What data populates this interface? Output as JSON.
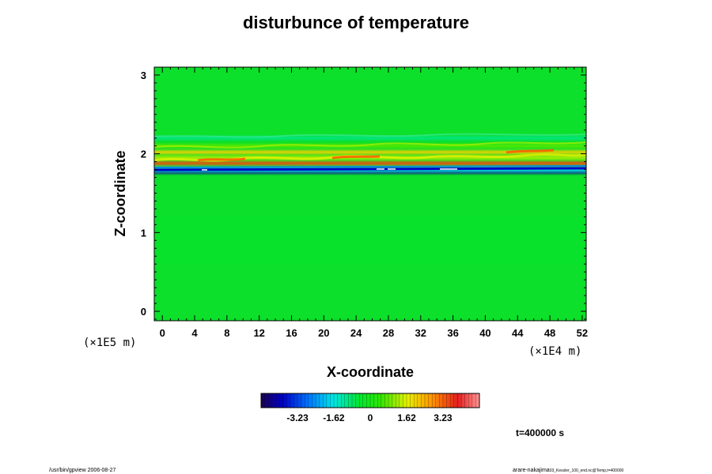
{
  "chart_data": {
    "type": "heatmap",
    "title": "disturbunce of temperature",
    "xlabel": "X-coordinate",
    "ylabel": "Z-coordinate",
    "x_unit": "(×1E4 m)",
    "y_unit": "(×1E5 m)",
    "xlim": [
      -1,
      52.5
    ],
    "ylim": [
      -0.12,
      3.1
    ],
    "xticks": [
      0,
      4,
      8,
      12,
      16,
      20,
      24,
      28,
      32,
      36,
      40,
      44,
      48,
      52
    ],
    "yticks": [
      0,
      1,
      2,
      3
    ],
    "colorbar": {
      "min": -4.85,
      "max": 4.85,
      "ticks": [
        -3.23,
        -1.62,
        0,
        1.62,
        3.23
      ],
      "tick_labels": [
        "-3.23",
        "-1.62",
        "0",
        "1.62",
        "3.23"
      ]
    },
    "bands": [
      {
        "z": 1.77,
        "value": -4.2
      },
      {
        "z": 1.8,
        "value": -1.6
      },
      {
        "z": 1.88,
        "value": 3.4
      },
      {
        "z": 1.95,
        "value": 1.3
      },
      {
        "z": 2.02,
        "value": 2.0
      },
      {
        "z": 2.1,
        "value": 0.7
      },
      {
        "z": 2.2,
        "value": -1.0
      },
      {
        "z": 0.9,
        "value": -0.35
      }
    ],
    "annotation": "t=400000 s"
  },
  "footer": {
    "left": "/usr/bin/gpview 2006-08-27",
    "right_main": "arare-nakajima",
    "right_small": "03_Kessler_100_end.nc@Temp,t=400000"
  }
}
